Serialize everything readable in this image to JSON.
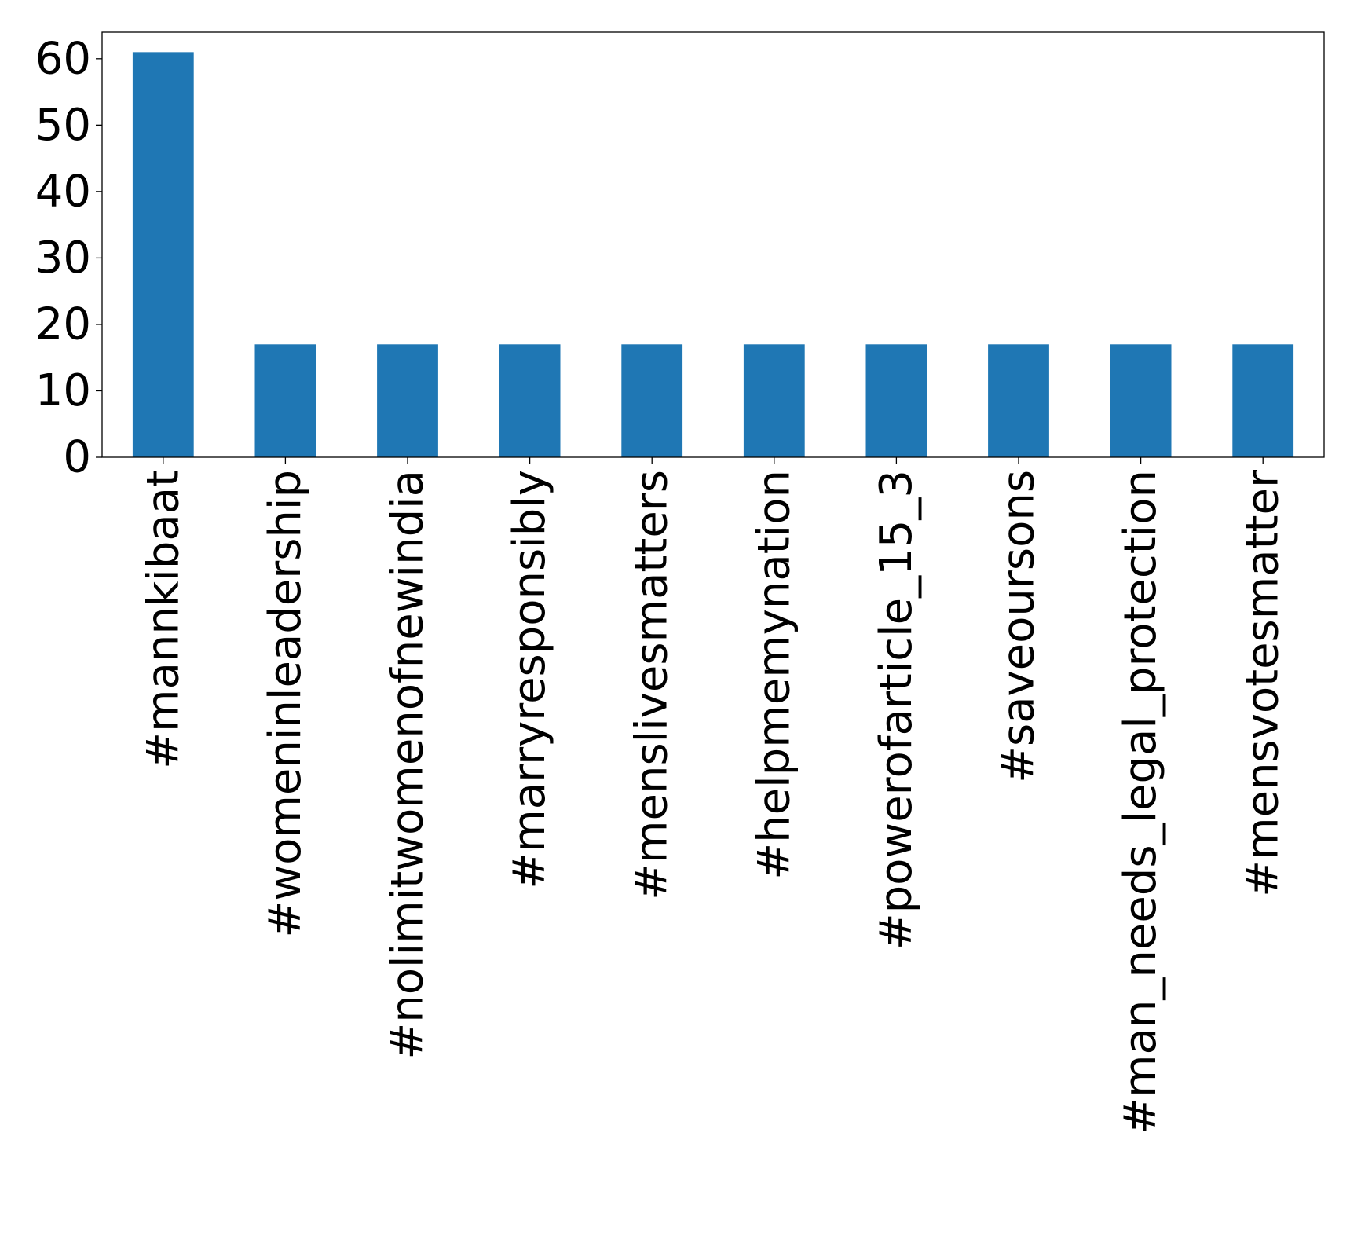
{
  "chart_data": {
    "type": "bar",
    "title": "",
    "xlabel": "",
    "ylabel": "",
    "categories": [
      "#mannkibaat",
      "#womeninleadership",
      "#nolimitwomenofnewindia",
      "#marryresponsibly",
      "#menslivesmatters",
      "#helpmemynation",
      "#powerofarticle_15_3",
      "#saveoursons",
      "#man_needs_legal_protection",
      "#mensvotesmatter"
    ],
    "values": [
      61,
      17,
      17,
      17,
      17,
      17,
      17,
      17,
      17,
      17
    ],
    "ylim": [
      0,
      64
    ],
    "yticks": [
      0,
      10,
      20,
      30,
      40,
      50,
      60
    ],
    "bar_color": "#1f77b4",
    "grid": false,
    "legend": "none"
  }
}
